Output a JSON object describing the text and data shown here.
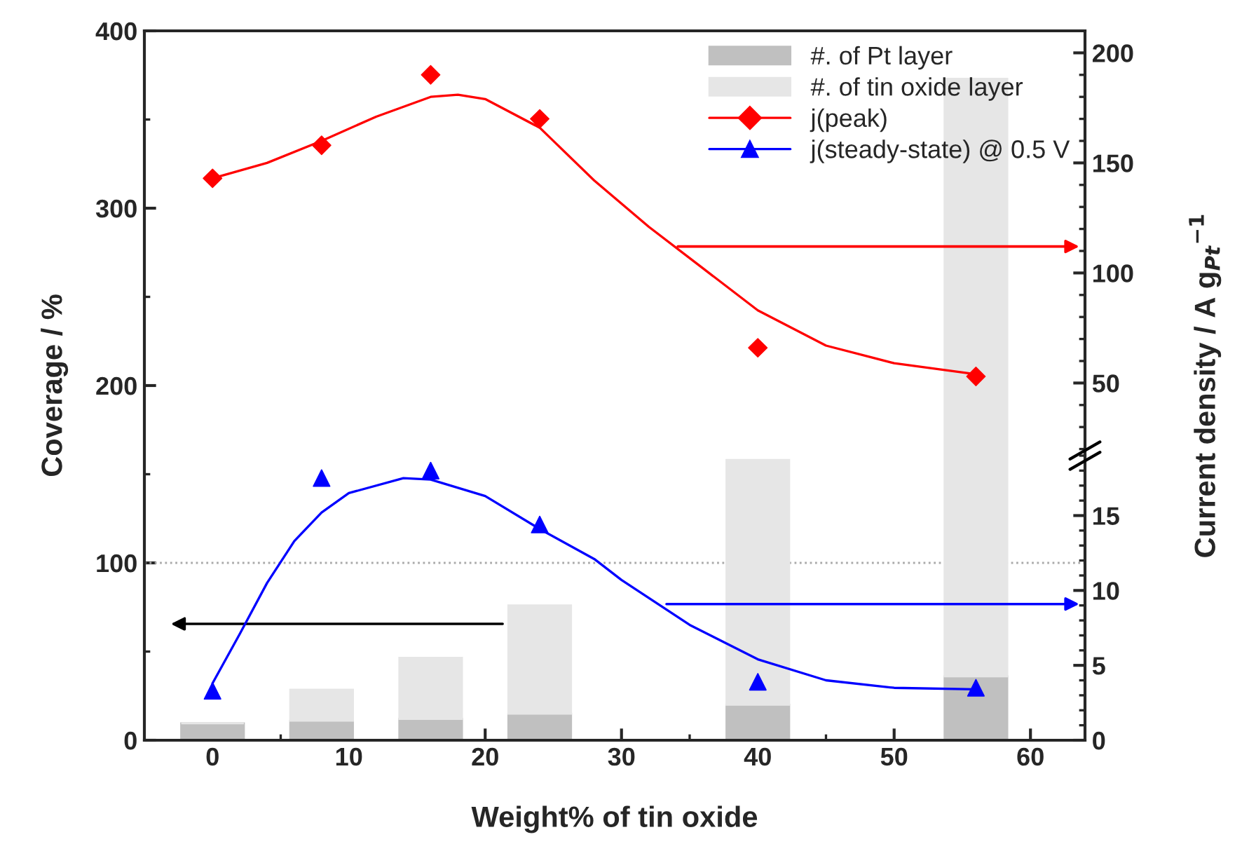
{
  "chart_data": {
    "type": "bar",
    "xlabel": "Weight% of tin oxide",
    "ylabel": "Coverage / %",
    "y2label": "Current density / A g$_{Pt}$$^{−1}$",
    "x": [
      0,
      8,
      16,
      24,
      40,
      56
    ],
    "stacked": true,
    "xlim": [
      -5,
      64
    ],
    "xticks": [
      0,
      10,
      20,
      30,
      40,
      50,
      60
    ],
    "ylim": [
      0,
      400
    ],
    "yticks": [
      0,
      100,
      200,
      300,
      400
    ],
    "y2lim": [
      0,
      47.36
    ],
    "y2ticks": [
      0,
      5,
      10,
      15
    ],
    "y3lim": [
      -112.3,
      210
    ],
    "y3ticks": [
      50,
      100,
      150,
      200
    ],
    "legend": "top right",
    "ref_lines": [
      {
        "axis": "y",
        "value": 100,
        "color": "#aaaaaa",
        "line_style": "dotted"
      }
    ],
    "series": [
      {
        "name": "#. of Pt layer",
        "color": "#c0c0c0",
        "values": [
          9.5,
          11,
          12,
          15,
          20,
          36
        ]
      },
      {
        "name": "#. of tin oxide layer",
        "color": "#e6e6e6",
        "values": [
          0,
          17.5,
          34.5,
          61,
          138,
          337
        ]
      },
      {
        "name": "j(peak)",
        "type": "scatter",
        "axis": "y3",
        "color": "#ff0000",
        "marker": "diamond",
        "values": [
          143,
          158,
          190,
          170,
          66,
          53
        ]
      },
      {
        "type": "line",
        "axis": "y3",
        "color": "#ff0000",
        "x": [
          0,
          4,
          8,
          12,
          16,
          18,
          20,
          24,
          28,
          32,
          36,
          40,
          45,
          50,
          56
        ],
        "values": [
          143,
          150,
          160,
          171,
          180,
          181,
          179,
          166,
          142,
          121,
          102,
          83,
          67,
          59,
          54
        ]
      },
      {
        "name": "j(steady-state) @ 0.5 V",
        "type": "scatter",
        "axis": "y2",
        "color": "#0000ff",
        "marker": "triangle",
        "values": [
          3.3,
          17.5,
          18.0,
          14.4,
          3.9,
          3.5
        ]
      },
      {
        "type": "line",
        "axis": "y2",
        "color": "#0000ff",
        "x": [
          0,
          2,
          4,
          6,
          8,
          10,
          14,
          16,
          20,
          24,
          28,
          30,
          35,
          40,
          45,
          50,
          56
        ],
        "values": [
          3.8,
          7.1,
          10.5,
          13.3,
          15.2,
          16.5,
          17.5,
          17.4,
          16.3,
          14.1,
          12.1,
          10.7,
          7.7,
          5.4,
          4.0,
          3.5,
          3.4
        ]
      }
    ]
  }
}
